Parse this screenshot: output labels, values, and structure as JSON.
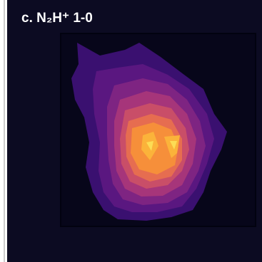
{
  "panel": {
    "title": "c. N₂H⁺ 1-0"
  }
}
